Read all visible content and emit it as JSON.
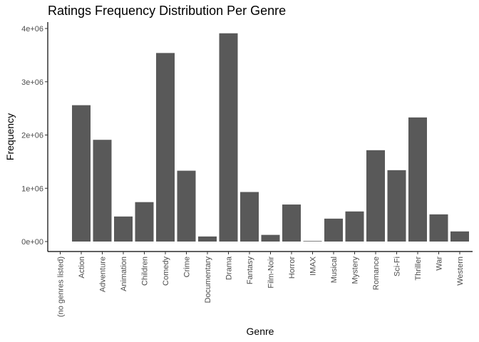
{
  "chart_data": {
    "type": "bar",
    "title": "Ratings Frequency Distribution Per Genre",
    "xlabel": "Genre",
    "ylabel": "Frequency",
    "ylim": [
      0,
      4000000
    ],
    "yticks": [
      0,
      1000000,
      2000000,
      3000000,
      4000000
    ],
    "ytick_labels": [
      "0e+00",
      "1e+06",
      "2e+06",
      "3e+06",
      "4e+06"
    ],
    "grid": false,
    "bar_color": "#595959",
    "categories": [
      "(no genres listed)",
      "Action",
      "Adventure",
      "Animation",
      "Children",
      "Comedy",
      "Crime",
      "Documentary",
      "Drama",
      "Fantasy",
      "Film-Noir",
      "Horror",
      "IMAX",
      "Musical",
      "Mystery",
      "Romance",
      "Sci-Fi",
      "Thriller",
      "War",
      "Western"
    ],
    "values": [
      0,
      2560000,
      1910000,
      470000,
      740000,
      3540000,
      1330000,
      95000,
      3910000,
      930000,
      125000,
      695000,
      10000,
      430000,
      565000,
      1715000,
      1340000,
      2330000,
      510000,
      190000
    ]
  }
}
